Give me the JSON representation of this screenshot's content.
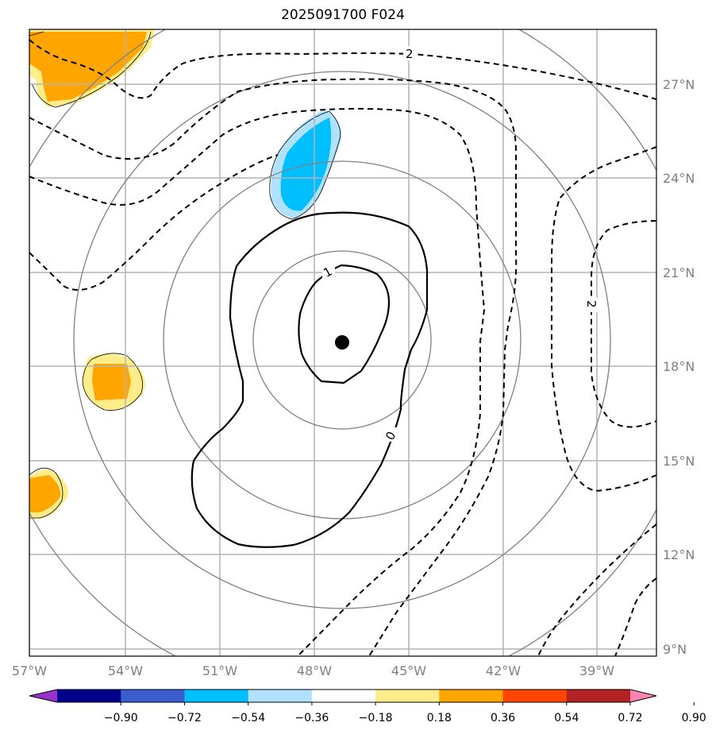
{
  "title": "2025091700 F024",
  "lat_labels": [
    "27°N",
    "24°N",
    "21°N",
    "18°N",
    "15°N",
    "12°N",
    "9°N"
  ],
  "lon_labels": [
    "57°W",
    "54°W",
    "51°W",
    "48°W",
    "45°W",
    "42°W",
    "39°W"
  ],
  "contour_labels": [
    "2",
    "1",
    "0",
    "2"
  ],
  "colorbar": {
    "ticks": [
      "−0.90",
      "−0.72",
      "−0.54",
      "−0.36",
      "−0.18",
      "0.18",
      "0.36",
      "0.54",
      "0.72",
      "0.90"
    ],
    "colors": [
      "#9932cc",
      "#00008b",
      "#3a5fcd",
      "#00bfff",
      "#b0e2ff",
      "#ffffff",
      "#ffec8b",
      "#ffa500",
      "#ff4500",
      "#b22222",
      "#ff83b4"
    ]
  },
  "center_marker": "storm-center-dot"
}
